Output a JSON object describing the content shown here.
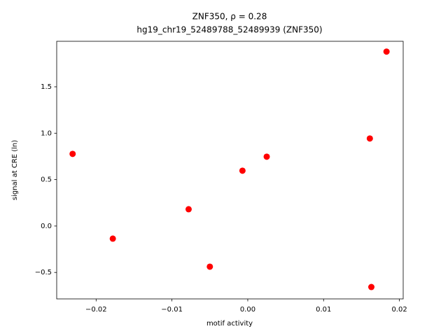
{
  "chart_data": {
    "type": "scatter",
    "title": "ZNF350, ρ = 0.28",
    "subtitle": "hg19_chr19_52489788_52489939 (ZNF350)",
    "x_label": "motif activity",
    "y_label": "signal at CRE (ln)",
    "color": "#ff0000",
    "x": [
      -0.0231,
      -0.0178,
      -0.0078,
      -0.005,
      -0.0007,
      0.0025,
      0.0161,
      0.0163,
      0.0183
    ],
    "values": [
      0.777,
      -0.136,
      0.181,
      -0.438,
      0.596,
      0.747,
      0.943,
      -0.657,
      1.879
    ],
    "xlim": [
      -0.0252,
      0.0205
    ],
    "ylim": [
      -0.785,
      1.99
    ],
    "xticks": [
      {
        "value": -0.02,
        "label": "−0.02"
      },
      {
        "value": -0.01,
        "label": "−0.01"
      },
      {
        "value": 0,
        "label": "0.00"
      },
      0.01,
      0.02
    ],
    "yticks": [
      {
        "value": -0.5,
        "label": "−0.5"
      },
      {
        "value": 0,
        "label": "0.0"
      },
      0.5,
      {
        "value": 1,
        "label": "1.0"
      },
      1.5
    ]
  }
}
